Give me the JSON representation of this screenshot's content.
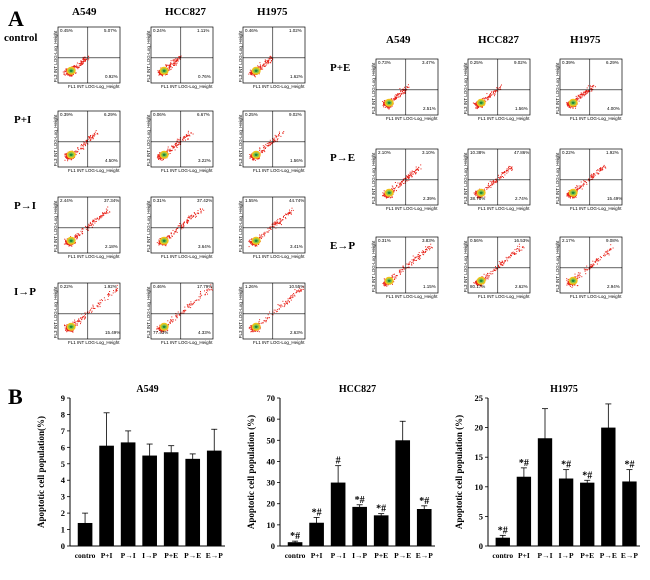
{
  "panel_a": {
    "letter": "A",
    "columns_left": [
      "A549",
      "HCC827",
      "H1975"
    ],
    "columns_right": [
      "A549",
      "HCC827",
      "H1975"
    ],
    "rows_left": [
      "control",
      "P+I",
      "P→I",
      "I→P"
    ],
    "rows_right": [
      "P+E",
      "P→E",
      "E→P"
    ],
    "axis_x_label": "FL1 INT LOG-Log_Height",
    "axis_y_label": "FL3 INT LOG-Log_Height",
    "left_grid": [
      [
        {
          "ul": "0.45%",
          "ur": "5.07%",
          "ll": "",
          "lr": "0.92%"
        },
        {
          "ul": "0.24%",
          "ur": "1.11%",
          "ll": "",
          "lr": "0.76%"
        },
        {
          "ul": "0.46%",
          "ur": "1.02%",
          "ll": "",
          "lr": "1.62%"
        }
      ],
      [
        {
          "ul": "0.39%",
          "ur": "6.29%",
          "ll": "",
          "lr": "4.50%"
        },
        {
          "ul": "0.06%",
          "ur": "6.67%",
          "ll": "",
          "lr": "3.22%"
        },
        {
          "ul": "0.25%",
          "ur": "9.02%",
          "ll": "",
          "lr": "1.56%"
        }
      ],
      [
        {
          "ul": "2.44%",
          "ur": "37.34%",
          "ll": "",
          "lr": "2.18%"
        },
        {
          "ul": "0.31%",
          "ur": "37.42%",
          "ll": "",
          "lr": "3.64%"
        },
        {
          "ul": "1.55%",
          "ur": "44.74%",
          "ll": "",
          "lr": "3.41%"
        }
      ],
      [
        {
          "ul": "0.22%",
          "ur": "1.92%",
          "ll": "",
          "lr": "15.49%"
        },
        {
          "ul": "0.46%",
          "ur": "17.79%",
          "ll": "77.43%",
          "lr": "4.33%"
        },
        {
          "ul": "1.26%",
          "ur": "10.55%",
          "ll": "",
          "lr": "2.63%"
        }
      ]
    ],
    "right_grid": [
      [
        {
          "ul": "0.73%",
          "ur": "3.47%",
          "ll": "",
          "lr": "2.51%"
        },
        {
          "ul": "0.25%",
          "ur": "9.02%",
          "ll": "",
          "lr": "1.56%"
        },
        {
          "ul": "0.39%",
          "ur": "6.29%",
          "ll": "",
          "lr": "4.00%"
        }
      ],
      [
        {
          "ul": "2.10%",
          "ur": "3.10%",
          "ll": "",
          "lr": "2.39%"
        },
        {
          "ul": "10.38%",
          "ur": "47.86%",
          "ll": "38.78%",
          "lr": "2.74%"
        },
        {
          "ul": "0.22%",
          "ur": "1.92%",
          "ll": "",
          "lr": "15.49%"
        }
      ],
      [
        {
          "ul": "0.31%",
          "ur": "3.83%",
          "ll": "",
          "lr": "1.15%"
        },
        {
          "ul": "0.56%",
          "ur": "16.53%",
          "ll": "80.17%",
          "lr": "2.62%"
        },
        {
          "ul": "2.17%",
          "ur": "9.08%",
          "ll": "",
          "lr": "2.94%"
        }
      ]
    ]
  },
  "panel_b": {
    "letter": "B",
    "bar_color": "#000000"
  },
  "chart_data": [
    {
      "type": "bar",
      "title": "A549",
      "ylabel": "Apoptotic cell population(%)",
      "xlabel": "",
      "categories": [
        "contro",
        "P+I",
        "P→I",
        "I→P",
        "P+E",
        "P→E",
        "E→P"
      ],
      "values": [
        1.4,
        6.1,
        6.3,
        5.5,
        5.7,
        5.3,
        5.8
      ],
      "errors": [
        0.6,
        2.0,
        0.7,
        0.7,
        0.4,
        0.3,
        1.3
      ],
      "annotations": [
        "",
        "",
        "",
        "",
        "",
        "",
        ""
      ],
      "ylim": [
        0,
        9
      ],
      "yticks": [
        0,
        1,
        2,
        3,
        4,
        5,
        6,
        7,
        8,
        9
      ]
    },
    {
      "type": "bar",
      "title": "HCC827",
      "ylabel": "Apoptotic cell population (%)",
      "xlabel": "",
      "categories": [
        "contro",
        "P+I",
        "P→I",
        "I→P",
        "P+E",
        "P→E",
        "E→P"
      ],
      "values": [
        1.8,
        11.0,
        30.0,
        18.5,
        14.5,
        50.0,
        17.5
      ],
      "errors": [
        0.5,
        2.5,
        8.0,
        1.0,
        0.8,
        9.0,
        1.5
      ],
      "annotations": [
        "*#",
        "*#",
        "#",
        "*#",
        "*#",
        "",
        "*#"
      ],
      "ylim": [
        0,
        70
      ],
      "yticks": [
        0,
        10,
        20,
        30,
        40,
        50,
        60,
        70
      ]
    },
    {
      "type": "bar",
      "title": "H1975",
      "ylabel": "Apoptotic cell population (%)",
      "xlabel": "",
      "categories": [
        "contro",
        "P+I",
        "P→I",
        "I→P",
        "P+E",
        "P→E",
        "E→P"
      ],
      "values": [
        1.4,
        11.7,
        18.2,
        11.4,
        10.7,
        20.0,
        10.9
      ],
      "errors": [
        0.4,
        1.5,
        5.0,
        1.5,
        0.4,
        4.0,
        2.0
      ],
      "annotations": [
        "*#",
        "*#",
        "",
        "*#",
        "*#",
        "",
        "*#"
      ],
      "ylim": [
        0,
        25
      ],
      "yticks": [
        0,
        5,
        10,
        15,
        20,
        25
      ]
    }
  ]
}
